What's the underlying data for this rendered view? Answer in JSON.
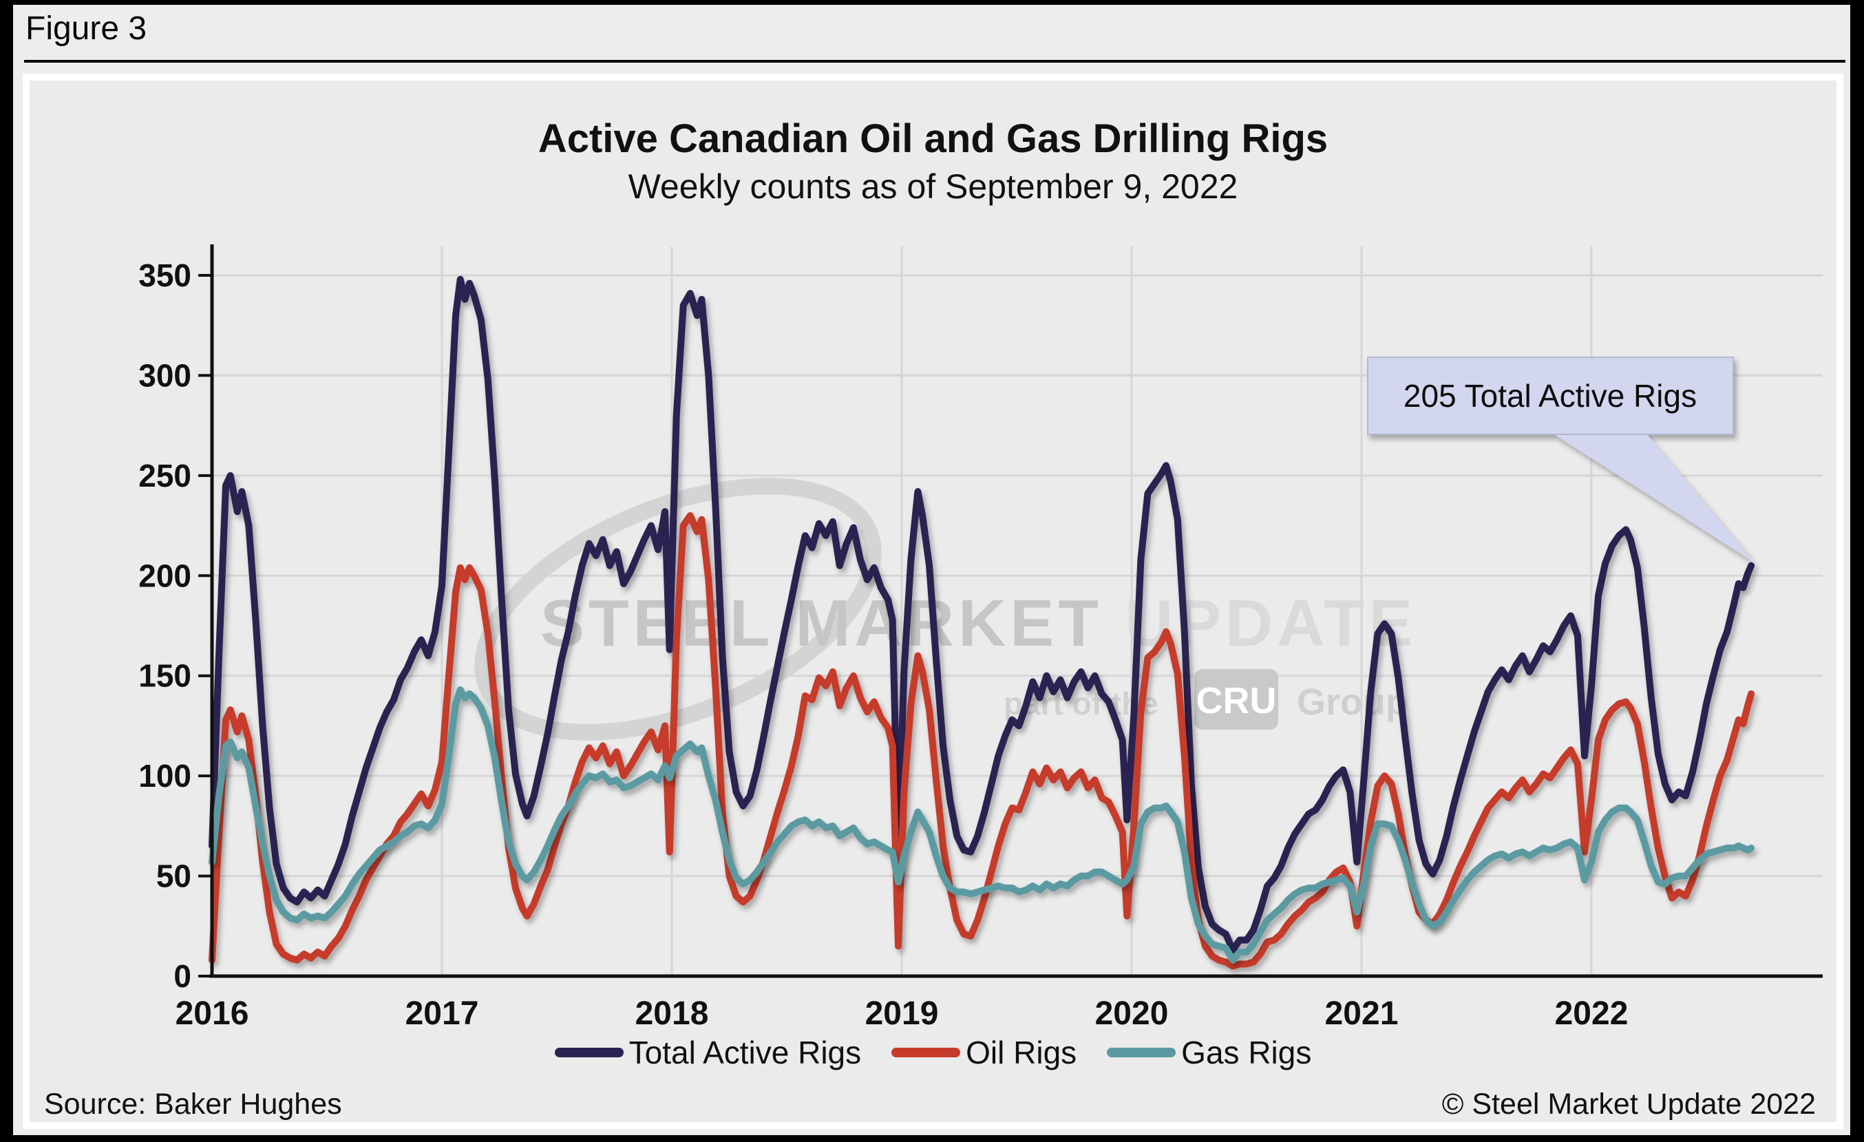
{
  "figure_label": "Figure 3",
  "chart_title": "Active Canadian Oil and Gas Drilling Rigs",
  "chart_subtitle": "Weekly counts as of September 9, 2022",
  "footer": {
    "source": "Source: Baker Hughes",
    "copyright": "© Steel Market Update 2022"
  },
  "annotation": {
    "text": "205 Total Active Rigs",
    "value": 205,
    "box_color": "#d3d6ef"
  },
  "watermark": {
    "line1_dark": "STEEL MARKET ",
    "line1_light": "UPDATE",
    "line2_prefix": "part of the",
    "line2_badge": "CRU",
    "line2_suffix": "Group"
  },
  "colors": {
    "total": "#2a2351",
    "oil": "#c63a2b",
    "gas": "#5b9aa2",
    "panel_bg": "#ebebeb",
    "outer_bg": "#ededed",
    "gridline": "#d6d6d6",
    "annotation_bg": "#d3d6ef"
  },
  "chart_data": {
    "type": "line",
    "title": "Active Canadian Oil and Gas Drilling Rigs",
    "subtitle": "Weekly counts as of September 9, 2022",
    "xlabel": "",
    "ylabel": "",
    "ylim": [
      0,
      350
    ],
    "y_ticks": [
      0,
      50,
      100,
      150,
      200,
      250,
      300,
      350
    ],
    "x_ticks": [
      2016,
      2017,
      2018,
      2019,
      2020,
      2021,
      2022
    ],
    "x_end": 2022.72,
    "grid": true,
    "legend_position": "bottom",
    "series": [
      {
        "name": "Total Active Rigs",
        "color": "#2a2351",
        "col": 1
      },
      {
        "name": "Oil Rigs",
        "color": "#c63a2b",
        "col": 2
      },
      {
        "name": "Gas Rigs",
        "color": "#5b9aa2",
        "col": 3
      }
    ],
    "rows_format": [
      "year_fraction",
      "total_active_rigs",
      "oil_rigs",
      "gas_rigs"
    ],
    "rows": [
      [
        2016.0,
        65,
        8,
        57
      ],
      [
        2016.03,
        160,
        70,
        90
      ],
      [
        2016.06,
        245,
        128,
        115
      ],
      [
        2016.08,
        250,
        133,
        117
      ],
      [
        2016.11,
        232,
        122,
        109
      ],
      [
        2016.13,
        242,
        130,
        112
      ],
      [
        2016.16,
        225,
        118,
        104
      ],
      [
        2016.19,
        178,
        90,
        85
      ],
      [
        2016.22,
        125,
        57,
        66
      ],
      [
        2016.25,
        84,
        32,
        50
      ],
      [
        2016.28,
        56,
        16,
        38
      ],
      [
        2016.31,
        44,
        11,
        32
      ],
      [
        2016.34,
        39,
        9,
        29
      ],
      [
        2016.37,
        37,
        8,
        28
      ],
      [
        2016.4,
        42,
        11,
        31
      ],
      [
        2016.43,
        39,
        9,
        29
      ],
      [
        2016.46,
        43,
        12,
        30
      ],
      [
        2016.49,
        40,
        10,
        29
      ],
      [
        2016.52,
        48,
        15,
        32
      ],
      [
        2016.55,
        56,
        19,
        36
      ],
      [
        2016.58,
        66,
        25,
        40
      ],
      [
        2016.61,
        80,
        33,
        46
      ],
      [
        2016.64,
        92,
        40,
        51
      ],
      [
        2016.67,
        104,
        48,
        55
      ],
      [
        2016.7,
        114,
        54,
        59
      ],
      [
        2016.73,
        124,
        60,
        63
      ],
      [
        2016.76,
        132,
        66,
        65
      ],
      [
        2016.79,
        138,
        70,
        67
      ],
      [
        2016.82,
        148,
        77,
        70
      ],
      [
        2016.85,
        154,
        81,
        72
      ],
      [
        2016.88,
        162,
        86,
        75
      ],
      [
        2016.91,
        168,
        91,
        76
      ],
      [
        2016.94,
        160,
        85,
        74
      ],
      [
        2016.97,
        172,
        93,
        78
      ],
      [
        2017.0,
        195,
        107,
        86
      ],
      [
        2017.03,
        262,
        150,
        110
      ],
      [
        2017.06,
        330,
        192,
        136
      ],
      [
        2017.08,
        348,
        204,
        143
      ],
      [
        2017.1,
        338,
        198,
        139
      ],
      [
        2017.12,
        346,
        204,
        141
      ],
      [
        2017.14,
        340,
        200,
        139
      ],
      [
        2017.17,
        328,
        193,
        134
      ],
      [
        2017.2,
        298,
        171,
        125
      ],
      [
        2017.23,
        248,
        137,
        109
      ],
      [
        2017.26,
        188,
        99,
        87
      ],
      [
        2017.29,
        133,
        64,
        67
      ],
      [
        2017.32,
        101,
        44,
        56
      ],
      [
        2017.35,
        86,
        34,
        50
      ],
      [
        2017.37,
        80,
        30,
        48
      ],
      [
        2017.4,
        90,
        36,
        52
      ],
      [
        2017.43,
        105,
        45,
        58
      ],
      [
        2017.46,
        121,
        53,
        65
      ],
      [
        2017.49,
        140,
        65,
        73
      ],
      [
        2017.52,
        158,
        76,
        80
      ],
      [
        2017.55,
        172,
        85,
        85
      ],
      [
        2017.58,
        190,
        97,
        91
      ],
      [
        2017.61,
        205,
        107,
        96
      ],
      [
        2017.64,
        216,
        114,
        100
      ],
      [
        2017.67,
        210,
        109,
        99
      ],
      [
        2017.7,
        218,
        115,
        101
      ],
      [
        2017.73,
        205,
        106,
        97
      ],
      [
        2017.76,
        212,
        112,
        98
      ],
      [
        2017.79,
        196,
        100,
        94
      ],
      [
        2017.82,
        202,
        105,
        95
      ],
      [
        2017.85,
        210,
        111,
        97
      ],
      [
        2017.88,
        218,
        117,
        99
      ],
      [
        2017.91,
        225,
        122,
        101
      ],
      [
        2017.94,
        213,
        113,
        98
      ],
      [
        2017.97,
        232,
        125,
        105
      ],
      [
        2017.99,
        163,
        62,
        99
      ],
      [
        2018.02,
        280,
        168,
        110
      ],
      [
        2018.05,
        335,
        225,
        113
      ],
      [
        2018.08,
        341,
        230,
        116
      ],
      [
        2018.11,
        330,
        222,
        112
      ],
      [
        2018.13,
        338,
        228,
        114
      ],
      [
        2018.16,
        300,
        198,
        100
      ],
      [
        2018.19,
        235,
        145,
        88
      ],
      [
        2018.22,
        160,
        82,
        72
      ],
      [
        2018.25,
        112,
        50,
        58
      ],
      [
        2018.28,
        92,
        40,
        49
      ],
      [
        2018.31,
        85,
        37,
        46
      ],
      [
        2018.34,
        90,
        40,
        48
      ],
      [
        2018.37,
        103,
        48,
        52
      ],
      [
        2018.4,
        120,
        58,
        57
      ],
      [
        2018.43,
        138,
        70,
        62
      ],
      [
        2018.46,
        155,
        82,
        67
      ],
      [
        2018.49,
        172,
        93,
        71
      ],
      [
        2018.52,
        188,
        105,
        75
      ],
      [
        2018.55,
        205,
        120,
        77
      ],
      [
        2018.58,
        220,
        140,
        78
      ],
      [
        2018.61,
        214,
        138,
        75
      ],
      [
        2018.64,
        226,
        149,
        77
      ],
      [
        2018.67,
        220,
        145,
        74
      ],
      [
        2018.7,
        227,
        152,
        75
      ],
      [
        2018.73,
        205,
        135,
        70
      ],
      [
        2018.76,
        216,
        144,
        72
      ],
      [
        2018.79,
        224,
        150,
        74
      ],
      [
        2018.82,
        208,
        139,
        69
      ],
      [
        2018.85,
        198,
        132,
        66
      ],
      [
        2018.88,
        204,
        137,
        67
      ],
      [
        2018.91,
        194,
        129,
        65
      ],
      [
        2018.94,
        188,
        124,
        63
      ],
      [
        2018.96,
        178,
        115,
        62
      ],
      [
        2018.985,
        62,
        15,
        47
      ],
      [
        2019.01,
        152,
        92,
        60
      ],
      [
        2019.04,
        208,
        136,
        72
      ],
      [
        2019.07,
        242,
        160,
        82
      ],
      [
        2019.09,
        230,
        152,
        78
      ],
      [
        2019.12,
        205,
        133,
        72
      ],
      [
        2019.15,
        158,
        98,
        60
      ],
      [
        2019.18,
        115,
        65,
        50
      ],
      [
        2019.21,
        88,
        44,
        44
      ],
      [
        2019.24,
        70,
        28,
        42
      ],
      [
        2019.27,
        63,
        21,
        42
      ],
      [
        2019.3,
        62,
        20,
        41
      ],
      [
        2019.33,
        70,
        28,
        42
      ],
      [
        2019.36,
        82,
        39,
        43
      ],
      [
        2019.39,
        96,
        52,
        44
      ],
      [
        2019.42,
        110,
        65,
        45
      ],
      [
        2019.45,
        120,
        76,
        44
      ],
      [
        2019.48,
        128,
        84,
        44
      ],
      [
        2019.51,
        125,
        83,
        42
      ],
      [
        2019.54,
        135,
        92,
        43
      ],
      [
        2019.57,
        147,
        102,
        45
      ],
      [
        2019.6,
        139,
        96,
        43
      ],
      [
        2019.63,
        150,
        104,
        46
      ],
      [
        2019.66,
        142,
        98,
        44
      ],
      [
        2019.69,
        148,
        102,
        46
      ],
      [
        2019.72,
        139,
        94,
        45
      ],
      [
        2019.75,
        147,
        99,
        48
      ],
      [
        2019.78,
        152,
        102,
        50
      ],
      [
        2019.81,
        144,
        94,
        50
      ],
      [
        2019.84,
        150,
        98,
        52
      ],
      [
        2019.87,
        141,
        89,
        52
      ],
      [
        2019.9,
        137,
        87,
        50
      ],
      [
        2019.93,
        128,
        80,
        48
      ],
      [
        2019.96,
        118,
        72,
        46
      ],
      [
        2019.98,
        78,
        30,
        48
      ],
      [
        2020.01,
        130,
        75,
        55
      ],
      [
        2020.04,
        208,
        132,
        76
      ],
      [
        2020.07,
        241,
        159,
        82
      ],
      [
        2020.1,
        246,
        162,
        84
      ],
      [
        2020.13,
        251,
        167,
        84
      ],
      [
        2020.15,
        255,
        172,
        85
      ],
      [
        2020.17,
        247,
        166,
        82
      ],
      [
        2020.2,
        228,
        151,
        77
      ],
      [
        2020.23,
        172,
        110,
        62
      ],
      [
        2020.26,
        96,
        57,
        39
      ],
      [
        2020.29,
        54,
        28,
        26
      ],
      [
        2020.32,
        35,
        15,
        20
      ],
      [
        2020.35,
        26,
        10,
        16
      ],
      [
        2020.38,
        23,
        8,
        15
      ],
      [
        2020.41,
        21,
        7,
        14
      ],
      [
        2020.44,
        13,
        5,
        8
      ],
      [
        2020.47,
        18,
        6,
        12
      ],
      [
        2020.5,
        18,
        6,
        12
      ],
      [
        2020.53,
        23,
        7,
        16
      ],
      [
        2020.56,
        33,
        11,
        22
      ],
      [
        2020.59,
        45,
        17,
        28
      ],
      [
        2020.62,
        49,
        18,
        31
      ],
      [
        2020.65,
        55,
        21,
        34
      ],
      [
        2020.68,
        64,
        26,
        38
      ],
      [
        2020.71,
        71,
        30,
        41
      ],
      [
        2020.74,
        76,
        33,
        43
      ],
      [
        2020.77,
        81,
        37,
        44
      ],
      [
        2020.8,
        83,
        39,
        44
      ],
      [
        2020.83,
        88,
        42,
        46
      ],
      [
        2020.86,
        95,
        48,
        47
      ],
      [
        2020.89,
        100,
        52,
        48
      ],
      [
        2020.92,
        103,
        54,
        49
      ],
      [
        2020.95,
        92,
        47,
        45
      ],
      [
        2020.98,
        57,
        25,
        32
      ],
      [
        2021.01,
        98,
        52,
        46
      ],
      [
        2021.04,
        142,
        77,
        65
      ],
      [
        2021.07,
        171,
        95,
        76
      ],
      [
        2021.1,
        176,
        100,
        76
      ],
      [
        2021.13,
        171,
        96,
        75
      ],
      [
        2021.16,
        149,
        81,
        68
      ],
      [
        2021.19,
        119,
        61,
        58
      ],
      [
        2021.22,
        91,
        45,
        46
      ],
      [
        2021.25,
        68,
        32,
        36
      ],
      [
        2021.28,
        56,
        28,
        28
      ],
      [
        2021.31,
        51,
        26,
        25
      ],
      [
        2021.34,
        58,
        31,
        27
      ],
      [
        2021.37,
        70,
        38,
        32
      ],
      [
        2021.4,
        85,
        47,
        38
      ],
      [
        2021.43,
        98,
        55,
        43
      ],
      [
        2021.46,
        110,
        62,
        48
      ],
      [
        2021.49,
        122,
        70,
        52
      ],
      [
        2021.52,
        132,
        77,
        55
      ],
      [
        2021.55,
        142,
        84,
        58
      ],
      [
        2021.58,
        148,
        88,
        60
      ],
      [
        2021.61,
        153,
        92,
        61
      ],
      [
        2021.64,
        148,
        89,
        59
      ],
      [
        2021.67,
        155,
        94,
        61
      ],
      [
        2021.7,
        160,
        98,
        62
      ],
      [
        2021.73,
        152,
        92,
        60
      ],
      [
        2021.76,
        158,
        96,
        62
      ],
      [
        2021.79,
        165,
        101,
        64
      ],
      [
        2021.82,
        162,
        99,
        63
      ],
      [
        2021.85,
        168,
        104,
        64
      ],
      [
        2021.88,
        175,
        109,
        66
      ],
      [
        2021.91,
        180,
        113,
        67
      ],
      [
        2021.94,
        170,
        106,
        64
      ],
      [
        2021.97,
        110,
        62,
        48
      ],
      [
        2022.0,
        145,
        88,
        57
      ],
      [
        2022.03,
        190,
        118,
        72
      ],
      [
        2022.06,
        206,
        128,
        78
      ],
      [
        2022.09,
        215,
        133,
        82
      ],
      [
        2022.12,
        220,
        136,
        84
      ],
      [
        2022.15,
        223,
        137,
        84
      ],
      [
        2022.17,
        218,
        134,
        82
      ],
      [
        2022.2,
        204,
        126,
        78
      ],
      [
        2022.23,
        174,
        107,
        67
      ],
      [
        2022.26,
        139,
        84,
        55
      ],
      [
        2022.29,
        111,
        64,
        47
      ],
      [
        2022.32,
        96,
        50,
        46
      ],
      [
        2022.35,
        88,
        39,
        49
      ],
      [
        2022.38,
        92,
        42,
        50
      ],
      [
        2022.41,
        90,
        40,
        50
      ],
      [
        2022.44,
        102,
        48,
        54
      ],
      [
        2022.47,
        118,
        60,
        58
      ],
      [
        2022.5,
        136,
        75,
        61
      ],
      [
        2022.53,
        150,
        88,
        62
      ],
      [
        2022.56,
        163,
        100,
        63
      ],
      [
        2022.59,
        172,
        108,
        64
      ],
      [
        2022.62,
        186,
        120,
        64
      ],
      [
        2022.64,
        196,
        128,
        65
      ],
      [
        2022.66,
        194,
        126,
        64
      ],
      [
        2022.68,
        201,
        135,
        63
      ],
      [
        2022.695,
        205,
        141,
        64
      ]
    ]
  },
  "legend": [
    {
      "label": "Total Active Rigs",
      "color": "#2a2351"
    },
    {
      "label": "Oil Rigs",
      "color": "#c63a2b"
    },
    {
      "label": "Gas Rigs",
      "color": "#5b9aa2"
    }
  ]
}
